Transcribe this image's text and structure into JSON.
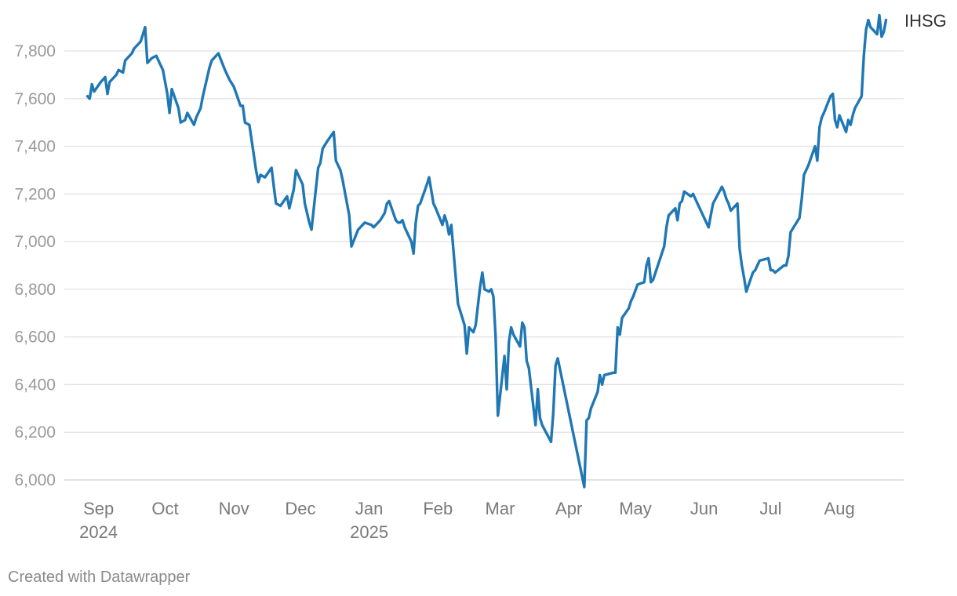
{
  "chart_data": {
    "type": "line",
    "title": "",
    "xlabel": "",
    "ylabel": "",
    "ylim": [
      6000,
      7950
    ],
    "yticks": [
      6000,
      6200,
      6400,
      6600,
      6800,
      7000,
      7200,
      7400,
      7600,
      7800
    ],
    "ytick_labels": [
      "6,000",
      "6,200",
      "6,400",
      "6,600",
      "6,800",
      "7,000",
      "7,200",
      "7,400",
      "7,600",
      "7,800"
    ],
    "grid": "horizontal",
    "xticks": [
      {
        "date": "2024-09-01",
        "label": "Sep",
        "year": "2024"
      },
      {
        "date": "2024-10-01",
        "label": "Oct",
        "year": ""
      },
      {
        "date": "2024-11-01",
        "label": "Nov",
        "year": ""
      },
      {
        "date": "2024-12-01",
        "label": "Dec",
        "year": ""
      },
      {
        "date": "2025-01-01",
        "label": "Jan",
        "year": "2025"
      },
      {
        "date": "2025-02-01",
        "label": "Feb",
        "year": ""
      },
      {
        "date": "2025-03-01",
        "label": "Mar",
        "year": ""
      },
      {
        "date": "2025-04-01",
        "label": "Apr",
        "year": ""
      },
      {
        "date": "2025-05-01",
        "label": "May",
        "year": ""
      },
      {
        "date": "2025-06-01",
        "label": "Jun",
        "year": ""
      },
      {
        "date": "2025-07-01",
        "label": "Jul",
        "year": ""
      },
      {
        "date": "2025-08-01",
        "label": "Aug",
        "year": ""
      }
    ],
    "xrange": [
      "2024-08-30",
      "2025-08-25"
    ],
    "series": [
      {
        "name": "IHSG",
        "color": "#1f77b4",
        "points": [
          [
            "2024-08-27",
            7610
          ],
          [
            "2024-08-28",
            7600
          ],
          [
            "2024-08-29",
            7660
          ],
          [
            "2024-08-30",
            7630
          ],
          [
            "2024-09-02",
            7670
          ],
          [
            "2024-09-04",
            7690
          ],
          [
            "2024-09-05",
            7620
          ],
          [
            "2024-09-06",
            7670
          ],
          [
            "2024-09-09",
            7700
          ],
          [
            "2024-09-10",
            7720
          ],
          [
            "2024-09-12",
            7710
          ],
          [
            "2024-09-13",
            7760
          ],
          [
            "2024-09-16",
            7790
          ],
          [
            "2024-09-17",
            7810
          ],
          [
            "2024-09-19",
            7830
          ],
          [
            "2024-09-20",
            7840
          ],
          [
            "2024-09-22",
            7900
          ],
          [
            "2024-09-23",
            7750
          ],
          [
            "2024-09-25",
            7770
          ],
          [
            "2024-09-27",
            7780
          ],
          [
            "2024-09-29",
            7740
          ],
          [
            "2024-09-30",
            7720
          ],
          [
            "2024-10-02",
            7620
          ],
          [
            "2024-10-03",
            7540
          ],
          [
            "2024-10-04",
            7640
          ],
          [
            "2024-10-07",
            7560
          ],
          [
            "2024-10-08",
            7500
          ],
          [
            "2024-10-10",
            7510
          ],
          [
            "2024-10-11",
            7540
          ],
          [
            "2024-10-14",
            7490
          ],
          [
            "2024-10-15",
            7520
          ],
          [
            "2024-10-17",
            7560
          ],
          [
            "2024-10-18",
            7610
          ],
          [
            "2024-10-21",
            7730
          ],
          [
            "2024-10-22",
            7760
          ],
          [
            "2024-10-24",
            7780
          ],
          [
            "2024-10-25",
            7790
          ],
          [
            "2024-10-28",
            7720
          ],
          [
            "2024-10-30",
            7680
          ],
          [
            "2024-11-01",
            7650
          ],
          [
            "2024-11-04",
            7570
          ],
          [
            "2024-11-05",
            7570
          ],
          [
            "2024-11-06",
            7500
          ],
          [
            "2024-11-08",
            7490
          ],
          [
            "2024-11-11",
            7300
          ],
          [
            "2024-11-12",
            7250
          ],
          [
            "2024-11-13",
            7280
          ],
          [
            "2024-11-15",
            7270
          ],
          [
            "2024-11-18",
            7310
          ],
          [
            "2024-11-19",
            7230
          ],
          [
            "2024-11-20",
            7160
          ],
          [
            "2024-11-22",
            7150
          ],
          [
            "2024-11-25",
            7190
          ],
          [
            "2024-11-26",
            7140
          ],
          [
            "2024-11-28",
            7220
          ],
          [
            "2024-11-29",
            7300
          ],
          [
            "2024-12-02",
            7240
          ],
          [
            "2024-12-03",
            7160
          ],
          [
            "2024-12-05",
            7080
          ],
          [
            "2024-12-06",
            7050
          ],
          [
            "2024-12-09",
            7310
          ],
          [
            "2024-12-10",
            7330
          ],
          [
            "2024-12-11",
            7390
          ],
          [
            "2024-12-13",
            7420
          ],
          [
            "2024-12-16",
            7460
          ],
          [
            "2024-12-17",
            7340
          ],
          [
            "2024-12-19",
            7300
          ],
          [
            "2024-12-20",
            7260
          ],
          [
            "2024-12-23",
            7110
          ],
          [
            "2024-12-24",
            6980
          ],
          [
            "2024-12-27",
            7050
          ],
          [
            "2024-12-30",
            7080
          ],
          [
            "2025-01-02",
            7070
          ],
          [
            "2025-01-03",
            7060
          ],
          [
            "2025-01-06",
            7090
          ],
          [
            "2025-01-08",
            7120
          ],
          [
            "2025-01-09",
            7160
          ],
          [
            "2025-01-10",
            7170
          ],
          [
            "2025-01-13",
            7090
          ],
          [
            "2025-01-14",
            7080
          ],
          [
            "2025-01-15",
            7080
          ],
          [
            "2025-01-16",
            7090
          ],
          [
            "2025-01-17",
            7060
          ],
          [
            "2025-01-20",
            7000
          ],
          [
            "2025-01-21",
            6950
          ],
          [
            "2025-01-22",
            7080
          ],
          [
            "2025-01-23",
            7150
          ],
          [
            "2025-01-24",
            7160
          ],
          [
            "2025-01-27",
            7240
          ],
          [
            "2025-01-28",
            7270
          ],
          [
            "2025-01-30",
            7160
          ],
          [
            "2025-01-31",
            7140
          ],
          [
            "2025-02-03",
            7070
          ],
          [
            "2025-02-04",
            7110
          ],
          [
            "2025-02-05",
            7080
          ],
          [
            "2025-02-06",
            7030
          ],
          [
            "2025-02-07",
            7070
          ],
          [
            "2025-02-10",
            6740
          ],
          [
            "2025-02-11",
            6710
          ],
          [
            "2025-02-13",
            6650
          ],
          [
            "2025-02-14",
            6530
          ],
          [
            "2025-02-15",
            6640
          ],
          [
            "2025-02-17",
            6620
          ],
          [
            "2025-02-18",
            6650
          ],
          [
            "2025-02-20",
            6810
          ],
          [
            "2025-02-21",
            6870
          ],
          [
            "2025-02-22",
            6800
          ],
          [
            "2025-02-24",
            6790
          ],
          [
            "2025-02-25",
            6800
          ],
          [
            "2025-02-26",
            6770
          ],
          [
            "2025-02-27",
            6600
          ],
          [
            "2025-02-28",
            6270
          ],
          [
            "2025-03-03",
            6520
          ],
          [
            "2025-03-04",
            6380
          ],
          [
            "2025-03-05",
            6580
          ],
          [
            "2025-03-06",
            6640
          ],
          [
            "2025-03-07",
            6610
          ],
          [
            "2025-03-10",
            6560
          ],
          [
            "2025-03-11",
            6660
          ],
          [
            "2025-03-12",
            6640
          ],
          [
            "2025-03-13",
            6500
          ],
          [
            "2025-03-14",
            6470
          ],
          [
            "2025-03-17",
            6230
          ],
          [
            "2025-03-18",
            6380
          ],
          [
            "2025-03-19",
            6260
          ],
          [
            "2025-03-20",
            6230
          ],
          [
            "2025-03-24",
            6160
          ],
          [
            "2025-03-25",
            6280
          ],
          [
            "2025-03-26",
            6480
          ],
          [
            "2025-03-27",
            6510
          ],
          [
            "2025-04-08",
            5970
          ],
          [
            "2025-04-09",
            6250
          ],
          [
            "2025-04-10",
            6260
          ],
          [
            "2025-04-11",
            6300
          ],
          [
            "2025-04-14",
            6370
          ],
          [
            "2025-04-15",
            6440
          ],
          [
            "2025-04-16",
            6400
          ],
          [
            "2025-04-17",
            6440
          ],
          [
            "2025-04-21",
            6450
          ],
          [
            "2025-04-22",
            6450
          ],
          [
            "2025-04-23",
            6640
          ],
          [
            "2025-04-24",
            6610
          ],
          [
            "2025-04-25",
            6680
          ],
          [
            "2025-04-28",
            6720
          ],
          [
            "2025-04-29",
            6750
          ],
          [
            "2025-04-30",
            6770
          ],
          [
            "2025-05-02",
            6820
          ],
          [
            "2025-05-05",
            6830
          ],
          [
            "2025-05-06",
            6900
          ],
          [
            "2025-05-07",
            6930
          ],
          [
            "2025-05-08",
            6830
          ],
          [
            "2025-05-09",
            6840
          ],
          [
            "2025-05-14",
            6980
          ],
          [
            "2025-05-15",
            7060
          ],
          [
            "2025-05-16",
            7110
          ],
          [
            "2025-05-19",
            7140
          ],
          [
            "2025-05-20",
            7090
          ],
          [
            "2025-05-21",
            7160
          ],
          [
            "2025-05-22",
            7170
          ],
          [
            "2025-05-23",
            7210
          ],
          [
            "2025-05-26",
            7190
          ],
          [
            "2025-05-27",
            7200
          ],
          [
            "2025-06-03",
            7060
          ],
          [
            "2025-06-04",
            7110
          ],
          [
            "2025-06-05",
            7160
          ],
          [
            "2025-06-09",
            7230
          ],
          [
            "2025-06-10",
            7210
          ],
          [
            "2025-06-11",
            7180
          ],
          [
            "2025-06-12",
            7160
          ],
          [
            "2025-06-13",
            7130
          ],
          [
            "2025-06-16",
            7160
          ],
          [
            "2025-06-17",
            6970
          ],
          [
            "2025-06-18",
            6900
          ],
          [
            "2025-06-19",
            6850
          ],
          [
            "2025-06-20",
            6790
          ],
          [
            "2025-06-23",
            6870
          ],
          [
            "2025-06-24",
            6880
          ],
          [
            "2025-06-25",
            6900
          ],
          [
            "2025-06-26",
            6920
          ],
          [
            "2025-06-30",
            6930
          ],
          [
            "2025-07-01",
            6880
          ],
          [
            "2025-07-02",
            6880
          ],
          [
            "2025-07-03",
            6870
          ],
          [
            "2025-07-07",
            6900
          ],
          [
            "2025-07-08",
            6900
          ],
          [
            "2025-07-09",
            6940
          ],
          [
            "2025-07-10",
            7040
          ],
          [
            "2025-07-14",
            7100
          ],
          [
            "2025-07-15",
            7180
          ],
          [
            "2025-07-16",
            7280
          ],
          [
            "2025-07-17",
            7300
          ],
          [
            "2025-07-18",
            7320
          ],
          [
            "2025-07-21",
            7400
          ],
          [
            "2025-07-22",
            7340
          ],
          [
            "2025-07-23",
            7480
          ],
          [
            "2025-07-24",
            7520
          ],
          [
            "2025-07-25",
            7540
          ],
          [
            "2025-07-28",
            7610
          ],
          [
            "2025-07-29",
            7620
          ],
          [
            "2025-07-30",
            7510
          ],
          [
            "2025-07-31",
            7480
          ],
          [
            "2025-08-01",
            7530
          ],
          [
            "2025-08-04",
            7460
          ],
          [
            "2025-08-05",
            7510
          ],
          [
            "2025-08-06",
            7490
          ],
          [
            "2025-08-07",
            7530
          ],
          [
            "2025-08-08",
            7560
          ],
          [
            "2025-08-11",
            7610
          ],
          [
            "2025-08-12",
            7780
          ],
          [
            "2025-08-13",
            7890
          ],
          [
            "2025-08-14",
            7930
          ],
          [
            "2025-08-15",
            7900
          ],
          [
            "2025-08-18",
            7870
          ],
          [
            "2025-08-19",
            7950
          ],
          [
            "2025-08-20",
            7860
          ],
          [
            "2025-08-21",
            7880
          ],
          [
            "2025-08-22",
            7930
          ]
        ]
      }
    ]
  },
  "footer": {
    "credit": "Created with Datawrapper"
  }
}
